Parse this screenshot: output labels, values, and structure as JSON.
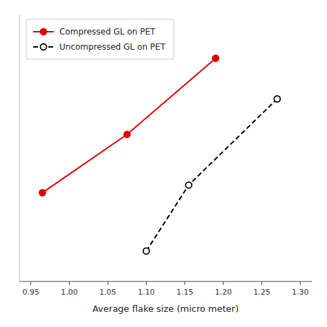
{
  "chart_data": {
    "type": "line",
    "xlabel": "Average flake size (micro meter)",
    "series": [
      {
        "name": "Compressed GL on PET",
        "color": "#dd0000",
        "line_style": "solid",
        "marker": "circle",
        "x": [
          0.965,
          1.075,
          1.19
        ],
        "values": [
          0.35,
          0.58,
          0.88
        ]
      },
      {
        "name": "Uncompressed GL on PET",
        "color": "#000000",
        "line_style": "dashed",
        "marker": "open-circle",
        "x": [
          1.1,
          1.155,
          1.27
        ],
        "values": [
          0.12,
          0.38,
          0.72
        ]
      }
    ],
    "xlim": [
      0.935,
      1.315
    ],
    "xticks": [
      0.95,
      {
        "value": 1.0,
        "label": "1.00"
      },
      1.05,
      {
        "value": 1.1,
        "label": "1.10"
      },
      1.15,
      {
        "value": 1.2,
        "label": "1.20"
      },
      1.25,
      {
        "value": 1.3,
        "label": "1.30"
      }
    ],
    "ylim": [
      0.0,
      1.05
    ],
    "tick_labels": "x",
    "legend": "upper left",
    "grid": false
  }
}
